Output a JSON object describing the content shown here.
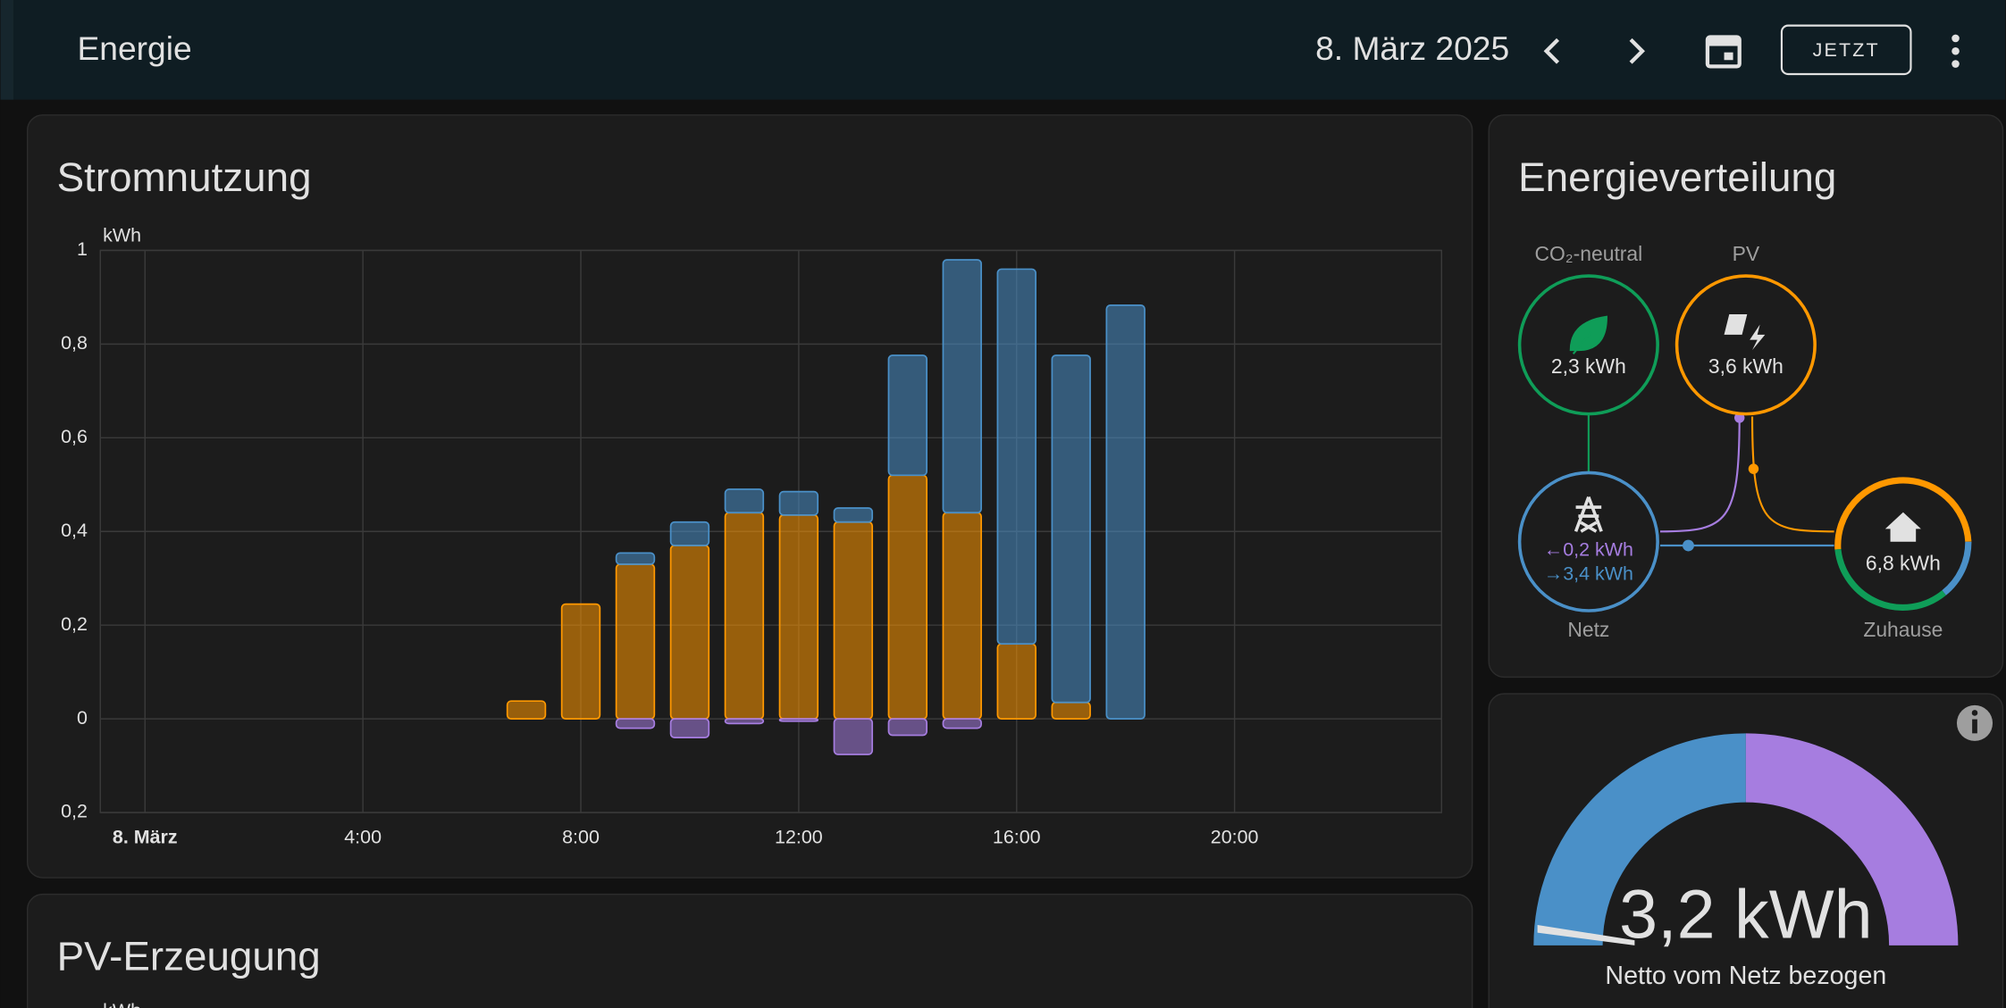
{
  "header": {
    "title": "Energie",
    "date": "8. März 2025",
    "button": "JETZT"
  },
  "usage_chart": {
    "type": "bar",
    "title": "Stromnutzung",
    "y_unit": "kWh",
    "stacked": true,
    "grid": true,
    "x": [
      7,
      8,
      9,
      10,
      11,
      12,
      13,
      14,
      15,
      16,
      17,
      18
    ],
    "xlim": [
      -0.82,
      23.8
    ],
    "xticks": [
      {
        "value": 0,
        "label": "8. März"
      },
      {
        "value": 4,
        "label": "4:00"
      },
      {
        "value": 8,
        "label": "8:00"
      },
      {
        "value": 12,
        "label": "12:00"
      },
      {
        "value": 16,
        "label": "16:00"
      },
      {
        "value": 20,
        "label": "20:00"
      }
    ],
    "ylim": [
      -0.2,
      1
    ],
    "yticks": [
      {
        "value": -0.2,
        "label": "0,2"
      },
      0,
      {
        "value": 0.2,
        "label": "0,2"
      },
      {
        "value": 0.4,
        "label": "0,4"
      },
      {
        "value": 0.6,
        "label": "0,6"
      },
      {
        "value": 0.8,
        "label": "0,8"
      },
      1
    ],
    "series": [
      {
        "color": "#ff9800",
        "values": [
          0.038,
          0.245,
          0.33,
          0.37,
          0.44,
          0.435,
          0.42,
          0.52,
          0.44,
          0.16,
          0.035,
          null
        ]
      },
      {
        "color": "#4a90c8",
        "values": [
          null,
          null,
          0.024,
          0.05,
          0.05,
          0.05,
          0.03,
          0.256,
          0.54,
          0.8,
          0.741,
          0.883
        ]
      },
      {
        "color": "#a67de0",
        "values": [
          null,
          null,
          -0.02,
          -0.04,
          -0.01,
          -0.005,
          -0.076,
          -0.035,
          -0.02,
          null,
          null,
          null
        ]
      }
    ]
  },
  "distribution": {
    "title": "Energieverteilung",
    "co2": {
      "label": "CO₂-neutral",
      "value": "2,3 kWh"
    },
    "pv": {
      "label": "PV",
      "value": "3,6 kWh"
    },
    "grid": {
      "label": "Netz",
      "returned": "←0,2 kWh",
      "consumed": "→3,4 kWh"
    },
    "home": {
      "label": "Zuhause",
      "value": "6,8 kWh"
    }
  },
  "gauge": {
    "value": "3,2 kWh",
    "label": "Netto vom Netz bezogen"
  },
  "pv_chart": {
    "title": "PV-Erzeugung",
    "y_unit": "kWh"
  }
}
